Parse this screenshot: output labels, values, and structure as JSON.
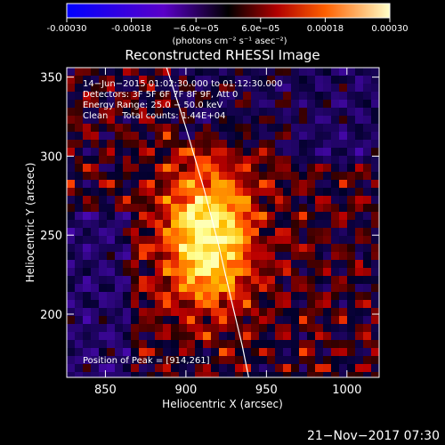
{
  "chart_data": {
    "type": "heatmap",
    "title": "Reconstructed RHESSI Image",
    "xlabel": "Heliocentric X (arcsec)",
    "ylabel": "Heliocentric Y (arcsec)",
    "xlim": [
      826,
      1020
    ],
    "ylim": [
      160,
      356
    ],
    "xticks": [
      850,
      900,
      950,
      1000
    ],
    "yticks": [
      200,
      250,
      300,
      350
    ],
    "colorbar": {
      "range": [
        -0.0003,
        0.0003
      ],
      "ticks": [
        "-0.00030",
        "-0.00018",
        "−6.0e−05",
        "6.0e−05",
        "0.00018",
        "0.00030"
      ],
      "units": "(photons cm⁻² s⁻¹ asec⁻²)"
    },
    "info_lines": [
      "14−Jun−2015 01:02:30.000 to 01:12:30.000",
      "Detectors: 3F 5F 6F 7F 8F 9F, Att 0",
      "Energy Range: 25.0 − 50.0 keV",
      "Clean     Total counts: 1.44E+04"
    ],
    "peak_label": "Position of Peak = [914,261]",
    "peak": [
      914,
      261
    ],
    "limb_curve": [
      [
        888,
        356
      ],
      [
        900,
        318
      ],
      [
        911,
        280
      ],
      [
        920,
        245
      ],
      [
        928,
        210
      ],
      [
        935,
        180
      ],
      [
        939,
        160
      ]
    ]
  },
  "footer": {
    "timestamp": "21−Nov−2017 07:30"
  }
}
